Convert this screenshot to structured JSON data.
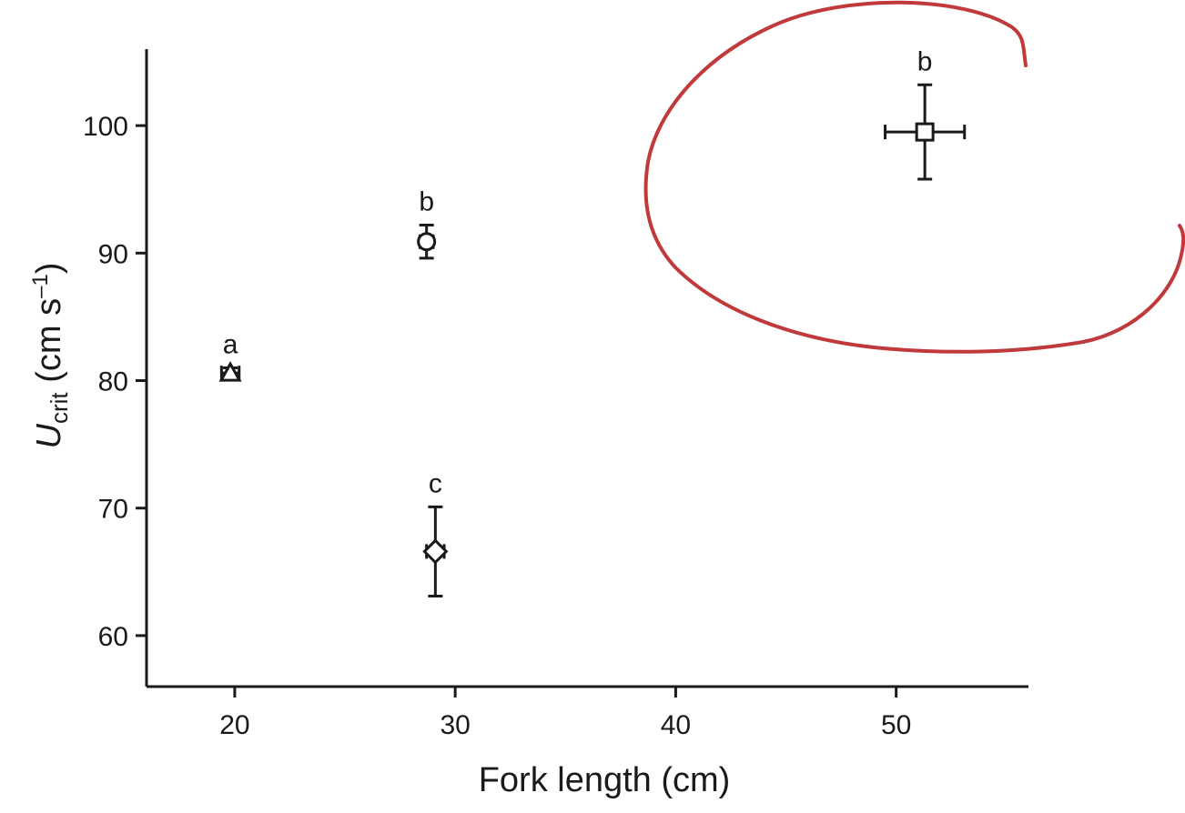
{
  "chart_data": {
    "type": "scatter",
    "xlabel": "Fork length (cm)",
    "ylabel": {
      "symbol": "U",
      "subscript": "crit",
      "unit_open": " (cm s",
      "superscript": "–1",
      "unit_close": ")"
    },
    "xlim": [
      16,
      56
    ],
    "ylim": [
      56,
      106
    ],
    "x_ticks": [
      20,
      30,
      40,
      50
    ],
    "y_ticks": [
      60,
      70,
      80,
      90,
      100
    ],
    "grid": false,
    "points": [
      {
        "marker": "triangle",
        "x": 19.8,
        "y": 80.6,
        "x_err": 0.4,
        "y_err": 0.4,
        "letter": "a"
      },
      {
        "marker": "circle",
        "x": 28.7,
        "y": 90.9,
        "x_err": 0.3,
        "y_err": 1.3,
        "letter": "b"
      },
      {
        "marker": "diamond",
        "x": 29.1,
        "y": 66.6,
        "x_err": 0.4,
        "y_err": 3.5,
        "letter": "c"
      },
      {
        "marker": "square",
        "x": 51.3,
        "y": 99.5,
        "x_err": 1.8,
        "y_err": 3.7,
        "letter": "b"
      }
    ],
    "annotation_color": "#c0393b"
  }
}
